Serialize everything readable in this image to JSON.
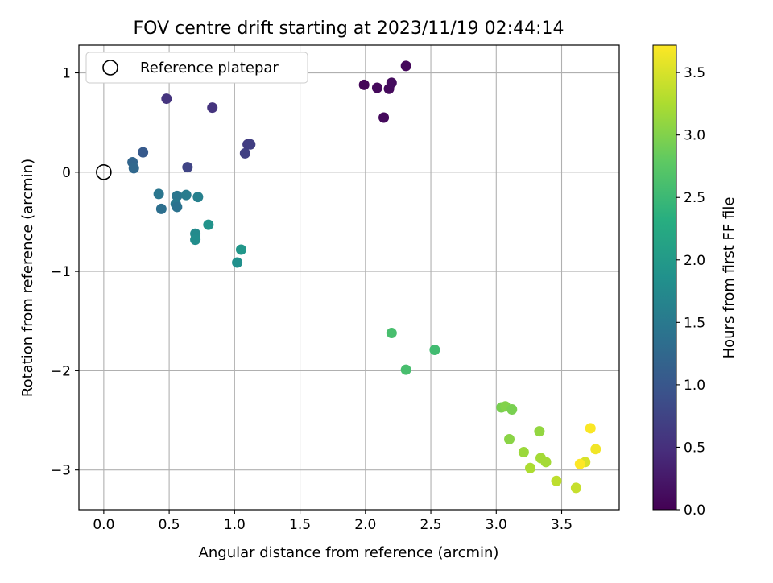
{
  "chart_data": {
    "type": "scatter",
    "title": "FOV centre drift starting at 2023/11/19 02:44:14",
    "xlabel": "Angular distance from reference (arcmin)",
    "ylabel": "Rotation from reference (arcmin)",
    "xlim": [
      -0.19,
      3.94
    ],
    "ylim": [
      -3.4,
      1.28
    ],
    "xticks": [
      "0.0",
      "0.5",
      "1.0",
      "1.5",
      "2.0",
      "2.5",
      "3.0",
      "3.5"
    ],
    "xtick_values": [
      0,
      0.5,
      1.0,
      1.5,
      2.0,
      2.5,
      3.0,
      3.5
    ],
    "yticks": [
      "1",
      "0",
      "−1",
      "−2",
      "−3"
    ],
    "ytick_values": [
      1,
      0,
      -1,
      -2,
      -3
    ],
    "grid": true,
    "legend": {
      "position": "top-left",
      "entries": [
        "Reference platepar"
      ]
    },
    "reference": {
      "x": 0.0,
      "y": 0.0
    },
    "colorbar": {
      "label": "Hours from first FF file",
      "range": [
        0.0,
        3.72
      ],
      "ticks": [
        "0.0",
        "0.5",
        "1.0",
        "1.5",
        "2.0",
        "2.5",
        "3.0",
        "3.5"
      ],
      "tick_values": [
        0,
        0.5,
        1.0,
        1.5,
        2.0,
        2.5,
        3.0,
        3.5
      ],
      "colormap": "viridis"
    },
    "points": [
      {
        "x": 1.99,
        "y": 0.88,
        "t": 0.05
      },
      {
        "x": 2.09,
        "y": 0.85,
        "t": 0.08
      },
      {
        "x": 2.18,
        "y": 0.84,
        "t": 0.1
      },
      {
        "x": 2.2,
        "y": 0.9,
        "t": 0.12
      },
      {
        "x": 2.31,
        "y": 1.07,
        "t": 0.07
      },
      {
        "x": 2.14,
        "y": 0.55,
        "t": 0.1
      },
      {
        "x": 0.48,
        "y": 0.74,
        "t": 0.55
      },
      {
        "x": 0.83,
        "y": 0.65,
        "t": 0.55
      },
      {
        "x": 1.1,
        "y": 0.28,
        "t": 0.65
      },
      {
        "x": 1.12,
        "y": 0.28,
        "t": 0.68
      },
      {
        "x": 1.08,
        "y": 0.19,
        "t": 0.7
      },
      {
        "x": 0.64,
        "y": 0.05,
        "t": 0.75
      },
      {
        "x": 0.3,
        "y": 0.2,
        "t": 1.05
      },
      {
        "x": 0.22,
        "y": 0.1,
        "t": 1.2
      },
      {
        "x": 0.23,
        "y": 0.04,
        "t": 1.25
      },
      {
        "x": 0.42,
        "y": -0.22,
        "t": 1.45
      },
      {
        "x": 0.44,
        "y": -0.37,
        "t": 1.35
      },
      {
        "x": 0.56,
        "y": -0.24,
        "t": 1.45
      },
      {
        "x": 0.55,
        "y": -0.32,
        "t": 1.5
      },
      {
        "x": 0.56,
        "y": -0.35,
        "t": 1.4
      },
      {
        "x": 0.63,
        "y": -0.23,
        "t": 1.55
      },
      {
        "x": 0.72,
        "y": -0.25,
        "t": 1.6
      },
      {
        "x": 0.7,
        "y": -0.62,
        "t": 1.75
      },
      {
        "x": 0.7,
        "y": -0.68,
        "t": 1.8
      },
      {
        "x": 0.8,
        "y": -0.53,
        "t": 1.9
      },
      {
        "x": 1.05,
        "y": -0.78,
        "t": 1.95
      },
      {
        "x": 1.02,
        "y": -0.91,
        "t": 1.85
      },
      {
        "x": 2.2,
        "y": -1.62,
        "t": 2.6
      },
      {
        "x": 2.53,
        "y": -1.79,
        "t": 2.55
      },
      {
        "x": 2.31,
        "y": -1.99,
        "t": 2.6
      },
      {
        "x": 3.04,
        "y": -2.37,
        "t": 2.95
      },
      {
        "x": 3.07,
        "y": -2.36,
        "t": 3.0
      },
      {
        "x": 3.12,
        "y": -2.39,
        "t": 2.95
      },
      {
        "x": 3.1,
        "y": -2.69,
        "t": 3.05
      },
      {
        "x": 3.33,
        "y": -2.61,
        "t": 3.1
      },
      {
        "x": 3.21,
        "y": -2.82,
        "t": 3.15
      },
      {
        "x": 3.26,
        "y": -2.98,
        "t": 3.25
      },
      {
        "x": 3.34,
        "y": -2.88,
        "t": 3.2
      },
      {
        "x": 3.38,
        "y": -2.92,
        "t": 3.2
      },
      {
        "x": 3.46,
        "y": -3.11,
        "t": 3.35
      },
      {
        "x": 3.61,
        "y": -3.18,
        "t": 3.4
      },
      {
        "x": 3.68,
        "y": -2.92,
        "t": 3.5
      },
      {
        "x": 3.64,
        "y": -2.94,
        "t": 3.72
      },
      {
        "x": 3.72,
        "y": -2.58,
        "t": 3.7
      },
      {
        "x": 3.76,
        "y": -2.79,
        "t": 3.65
      }
    ]
  }
}
